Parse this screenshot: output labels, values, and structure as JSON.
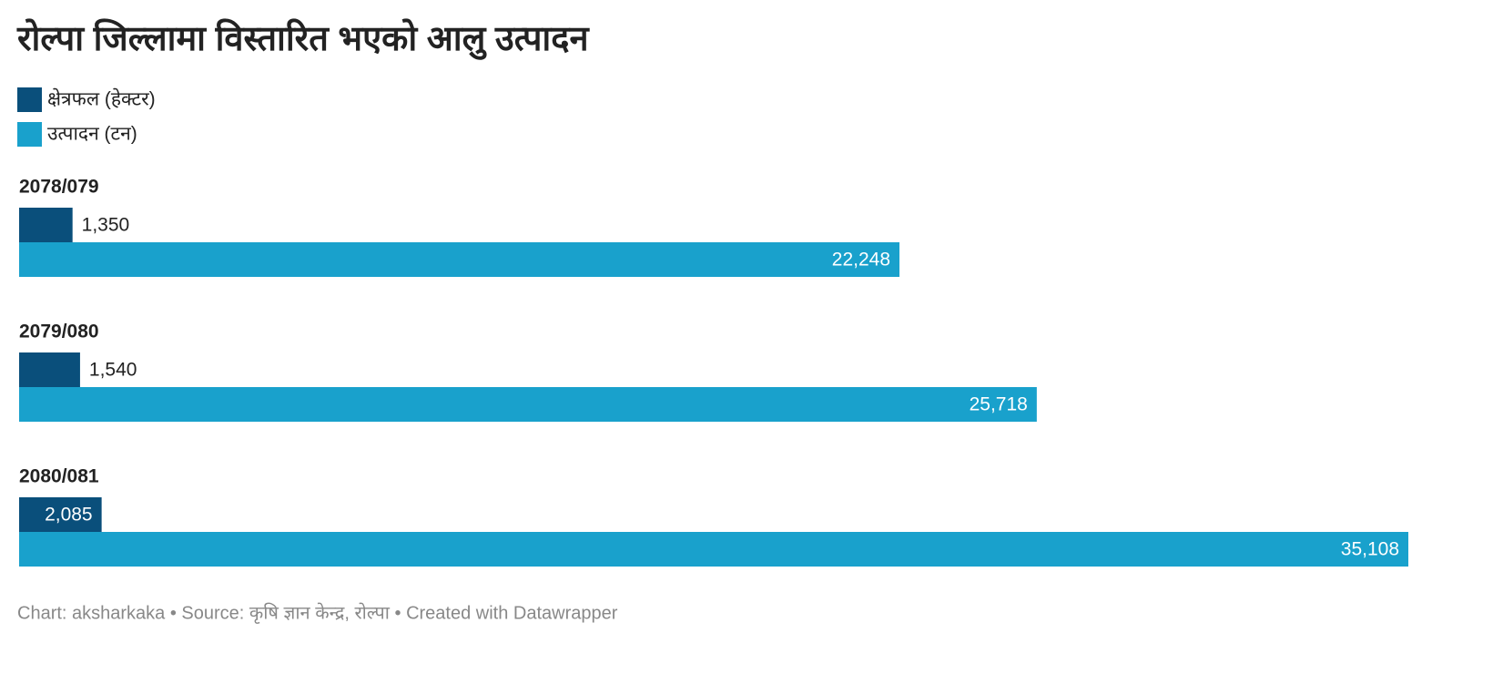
{
  "chart_data": {
    "type": "grouped-bar-horizontal",
    "title": "रोल्पा जिल्लामा विस्तारित भएको आलु उत्पादन",
    "categories": [
      "2078/079",
      "2079/080",
      "2080/081"
    ],
    "series": [
      {
        "name": "क्षेत्रफल (हेक्टर)",
        "color": "#0a4f7b",
        "values": [
          1350,
          1540,
          2085
        ],
        "value_labels": [
          "1,350",
          "1,540",
          "2,085"
        ]
      },
      {
        "name": "उत्पादन (टन)",
        "color": "#19a1cc",
        "values": [
          22248,
          25718,
          35108
        ],
        "value_labels": [
          "22,248",
          "25,718",
          "35,108"
        ]
      }
    ],
    "source": "Chart: aksharkaka • Source: कृषि ज्ञान केन्द्र, रोल्पा • Created with Datawrapper"
  }
}
